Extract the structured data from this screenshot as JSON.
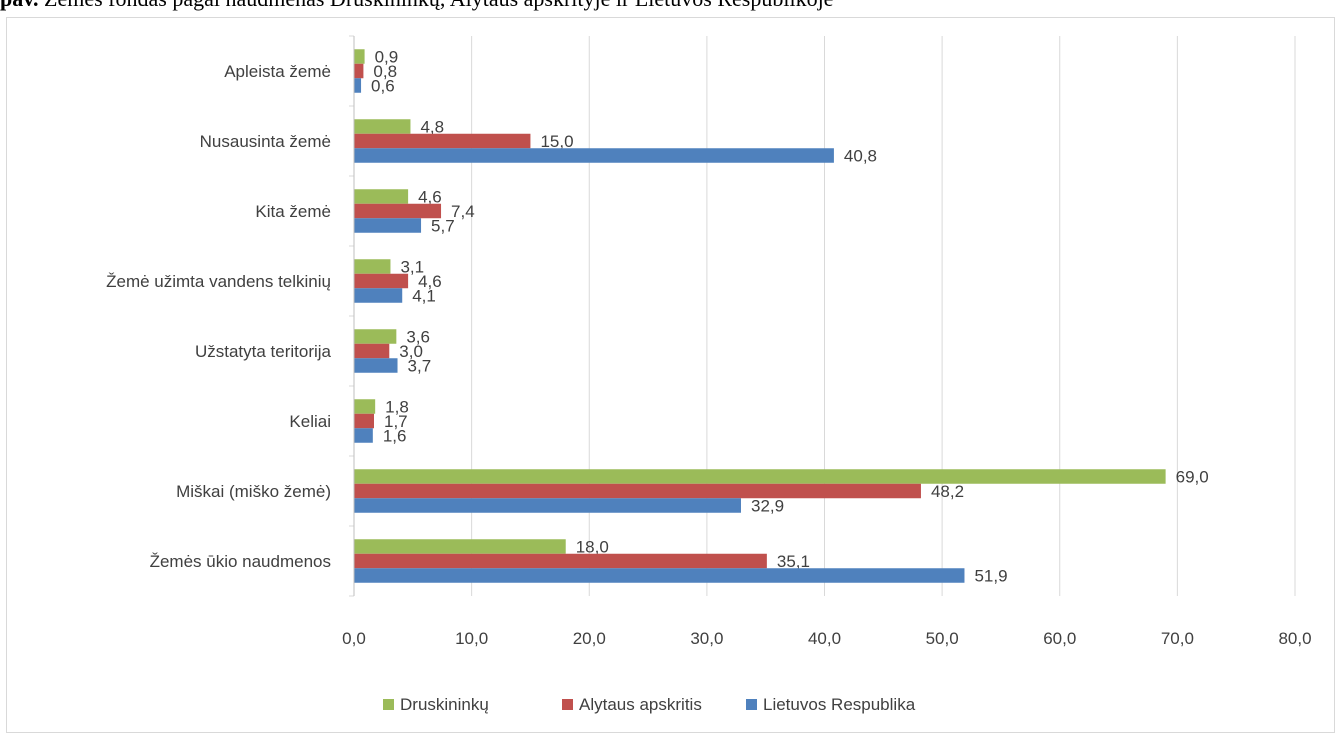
{
  "heading": {
    "bold": "pav.",
    "text": "Žemės fondas pagal naudmenas Druskininkų, Alytaus apskrityje ir Lietuvos Respublikoje"
  },
  "chart_data": {
    "type": "bar",
    "orientation": "horizontal",
    "title": "",
    "xlabel": "",
    "ylabel": "",
    "categories": [
      "Apleista žemė",
      "Nusausinta žemė",
      "Kita žemė",
      "Žemė užimta vandens telkinių",
      "Užstatyta teritorija",
      "Keliai",
      "Miškai (miško žemė)",
      "Žemės ūkio naudmenos"
    ],
    "series": [
      {
        "name": "Druskininkų",
        "color": "#9bbb59",
        "values": [
          0.9,
          4.8,
          4.6,
          3.1,
          3.6,
          1.8,
          69.0,
          18.0
        ],
        "labels": [
          "0,9",
          "4,8",
          "4,6",
          "3,1",
          "3,6",
          "1,8",
          "69,0",
          "18,0"
        ]
      },
      {
        "name": "Alytaus apskritis",
        "color": "#c0504d",
        "values": [
          0.8,
          15.0,
          7.4,
          4.6,
          3.0,
          1.7,
          48.2,
          35.1
        ],
        "labels": [
          "0,8",
          "15,0",
          "7,4",
          "4,6",
          "3,0",
          "1,7",
          "48,2",
          "35,1"
        ]
      },
      {
        "name": "Lietuvos Respublika",
        "color": "#4f81bd",
        "values": [
          0.6,
          40.8,
          5.7,
          4.1,
          3.7,
          1.6,
          32.9,
          51.9
        ],
        "labels": [
          "0,6",
          "40,8",
          "5,7",
          "4,1",
          "3,7",
          "1,6",
          "32,9",
          "51,9"
        ]
      }
    ],
    "xlim": [
      0,
      80
    ],
    "xticks": [
      0,
      10,
      20,
      30,
      40,
      50,
      60,
      70,
      80
    ],
    "xtick_labels": [
      "0,0",
      "10,0",
      "20,0",
      "30,0",
      "40,0",
      "50,0",
      "60,0",
      "70,0",
      "80,0"
    ],
    "grid": "vertical",
    "legend": "bottom",
    "colors": {
      "gridline": "#d9d9d9",
      "text": "#404040"
    }
  }
}
